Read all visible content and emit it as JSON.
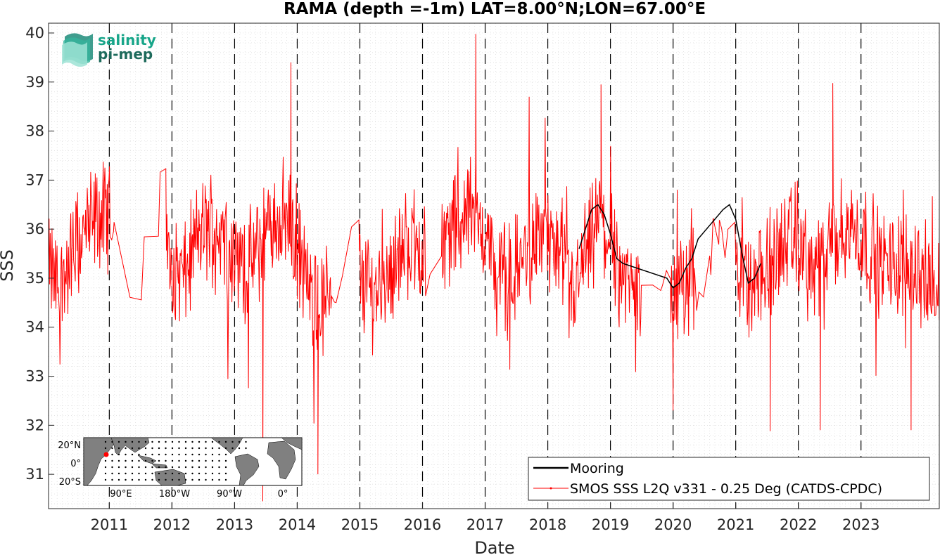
{
  "chart_data": {
    "type": "line",
    "title": "RAMA (depth =-1m) LAT=8.00°N;LON=67.00°E",
    "xlabel": "Date",
    "ylabel": "SSS",
    "xlim": [
      2010.03,
      2024.25
    ],
    "ylim": [
      30.3,
      40.2
    ],
    "x_ticks": [
      "2011",
      "2012",
      "2013",
      "2014",
      "2015",
      "2016",
      "2017",
      "2018",
      "2019",
      "2020",
      "2021",
      "2022",
      "2023"
    ],
    "y_ticks": [
      31,
      32,
      33,
      34,
      35,
      36,
      37,
      38,
      39,
      40
    ],
    "grid": true,
    "year_boundaries": [
      2011,
      2012,
      2013,
      2014,
      2015,
      2016,
      2017,
      2018,
      2019,
      2020,
      2021,
      2022,
      2023
    ],
    "legend": {
      "placement": "bottom-right"
    },
    "series": [
      {
        "name": "Mooring",
        "color": "#000000",
        "x": [
          2018.5,
          2018.6,
          2018.7,
          2018.8,
          2018.9,
          2019.0,
          2019.1,
          2019.2,
          2019.9,
          2020.0,
          2020.1,
          2020.2,
          2020.3,
          2020.4,
          2020.6,
          2020.8,
          2020.9,
          2021.0,
          2021.1,
          2021.2,
          2021.3,
          2021.4
        ],
        "values": [
          35.6,
          36.0,
          36.4,
          36.5,
          36.3,
          35.9,
          35.4,
          35.3,
          35.0,
          34.8,
          34.9,
          35.2,
          35.4,
          35.8,
          36.1,
          36.4,
          36.5,
          36.2,
          35.5,
          34.9,
          35.0,
          35.3
        ]
      },
      {
        "name": "SMOS SSS L2Q v331 - 0.25 Deg (CATDS-CPDC)",
        "color": "#ff0000",
        "x": [
          2010.03,
          2010.2,
          2010.4,
          2010.6,
          2010.8,
          2011.0,
          2011.2,
          2011.4,
          2011.6,
          2011.8,
          2012.0,
          2012.2,
          2012.4,
          2012.6,
          2012.8,
          2013.0,
          2013.2,
          2013.4,
          2013.6,
          2013.8,
          2014.0,
          2014.2,
          2014.4,
          2014.6,
          2014.8,
          2015.0,
          2015.2,
          2015.4,
          2015.6,
          2015.8,
          2016.0,
          2016.2,
          2016.4,
          2016.6,
          2016.8,
          2017.0,
          2017.2,
          2017.4,
          2017.6,
          2017.8,
          2018.0,
          2018.2,
          2018.4,
          2018.6,
          2018.8,
          2019.0,
          2019.2,
          2019.4,
          2019.6,
          2019.8,
          2020.0,
          2020.2,
          2020.4,
          2020.6,
          2020.8,
          2021.0,
          2021.2,
          2021.4,
          2021.6,
          2021.8,
          2022.0,
          2022.2,
          2022.4,
          2022.6,
          2022.8,
          2023.0,
          2023.2,
          2023.4,
          2023.6,
          2023.8,
          2024.0,
          2024.25
        ],
        "values": [
          35.2,
          34.8,
          35.4,
          35.9,
          36.2,
          36.3,
          35.9,
          34.9,
          35.6,
          36.0,
          35.3,
          35.0,
          35.8,
          36.1,
          36.0,
          35.4,
          35.2,
          35.6,
          36.1,
          36.3,
          35.7,
          34.6,
          34.4,
          35.1,
          35.6,
          35.2,
          34.7,
          35.0,
          35.4,
          35.8,
          35.5,
          35.4,
          35.9,
          36.2,
          36.5,
          35.9,
          35.1,
          35.0,
          35.4,
          35.8,
          35.9,
          35.2,
          34.6,
          35.4,
          36.1,
          35.8,
          34.9,
          34.8,
          35.2,
          35.3,
          34.6,
          34.8,
          35.2,
          35.6,
          36.1,
          35.6,
          34.8,
          34.9,
          35.4,
          35.7,
          35.8,
          35.1,
          35.3,
          35.8,
          36.0,
          35.9,
          35.5,
          35.2,
          35.3,
          35.4,
          35.0,
          34.6
        ],
        "extremes": [
          {
            "x": 2016.85,
            "value": 39.98
          },
          {
            "x": 2013.9,
            "value": 39.4
          },
          {
            "x": 2014.33,
            "value": 31.0
          },
          {
            "x": 2013.45,
            "value": 30.45
          },
          {
            "x": 2022.55,
            "value": 38.98
          },
          {
            "x": 2018.85,
            "value": 38.95
          },
          {
            "x": 2021.55,
            "value": 31.88
          },
          {
            "x": 2022.35,
            "value": 31.9
          },
          {
            "x": 2023.8,
            "value": 31.9
          },
          {
            "x": 2020.0,
            "value": 32.3
          }
        ],
        "noise_amplitude": 0.9
      }
    ]
  },
  "inset_map": {
    "y_labels": [
      "20°N",
      "0°",
      "20°S"
    ],
    "x_labels": [
      "90°E",
      "180°W",
      "90°W",
      "0°"
    ],
    "highlight_color": "#ff0000",
    "land_color": "#808080",
    "ocean_color": "#ffffff"
  },
  "logo": {
    "line1": "salinity",
    "line2": "pi-mep",
    "color1": "#17a589",
    "color2": "#1e6b5c"
  }
}
